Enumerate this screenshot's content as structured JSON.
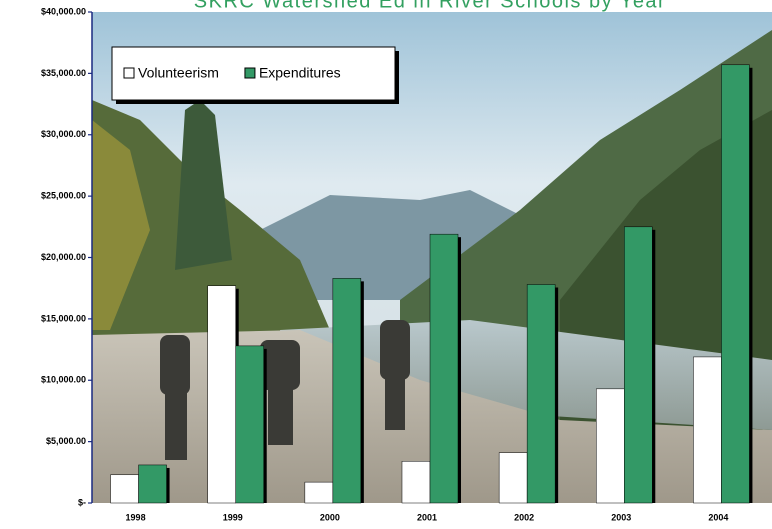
{
  "chart_data": {
    "type": "bar",
    "title": "SKRC Watershed Ed in River Schools by Year",
    "categories": [
      "1998",
      "1999",
      "2000",
      "2001",
      "2002",
      "2003",
      "2004"
    ],
    "series": [
      {
        "name": "Volunteerism",
        "color": "#ffffff",
        "values": [
          2300,
          17700,
          1700,
          3400,
          4100,
          9300,
          11900
        ]
      },
      {
        "name": "Expenditures",
        "color": "#339966",
        "values": [
          3100,
          12800,
          18300,
          21900,
          17800,
          22500,
          35700
        ]
      }
    ],
    "ylim": [
      0,
      40000
    ],
    "yticks": [
      {
        "value": 0,
        "label": "$-"
      },
      {
        "value": 5000,
        "label": "$5,000.00"
      },
      {
        "value": 10000,
        "label": "$10,000.00"
      },
      {
        "value": 15000,
        "label": "$15,000.00"
      },
      {
        "value": 20000,
        "label": "$20,000.00"
      },
      {
        "value": 25000,
        "label": "$25,000.00"
      },
      {
        "value": 30000,
        "label": "$30,000.00"
      },
      {
        "value": 35000,
        "label": "$35,000.00"
      },
      {
        "value": 40000,
        "label": "$40,000.00"
      }
    ],
    "legend": "top-left"
  }
}
